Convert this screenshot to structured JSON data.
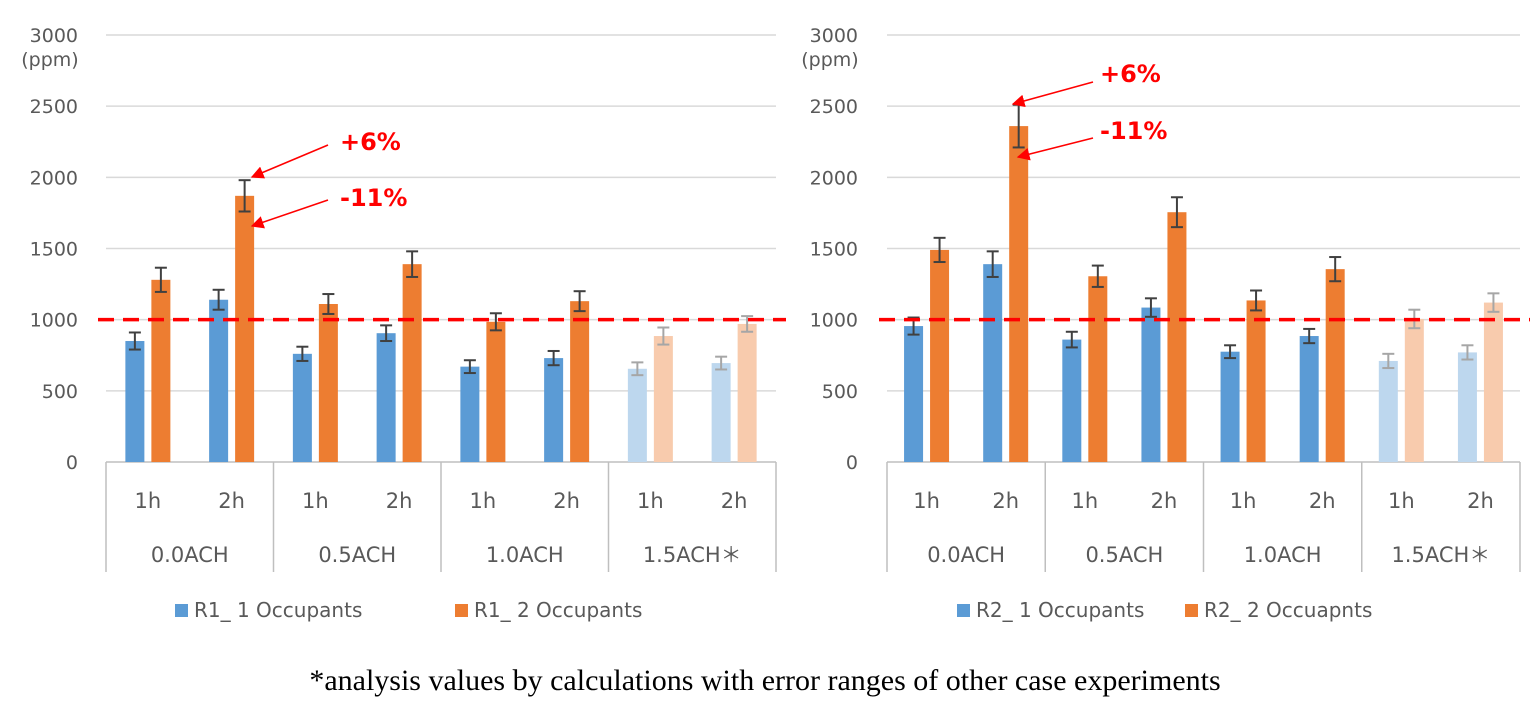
{
  "footnote": "*analysis values by calculations with error ranges of other case experiments",
  "colors": {
    "grid": "#d9d9d9",
    "axis_line": "#bfbfbf",
    "blue": "#5b9bd5",
    "orange": "#ed7d31",
    "blue_light": "#bdd7ee",
    "orange_light": "#f8cbad",
    "error_bar": "#404040",
    "error_bar_light": "#a6a6a6",
    "threshold": "#ff0000",
    "annotation": "#ff0000"
  },
  "chart_data": [
    {
      "type": "bar",
      "unit": "(ppm)",
      "ylim": [
        0,
        3000
      ],
      "yticks": [
        "0",
        "500",
        "1000",
        "1500",
        "2000",
        "2500",
        "3000"
      ],
      "grid": true,
      "legend_position": "bottom",
      "threshold": 1000,
      "categories": [
        "1h",
        "2h",
        "1h",
        "2h",
        "1h",
        "2h",
        "1h",
        "2h"
      ],
      "groups": [
        "0.0ACH",
        "0.5ACH",
        "1.0ACH",
        "1.5ACH＊"
      ],
      "estimated_group_index": 3,
      "series": [
        {
          "name": "R1_ 1 Occupants",
          "values": [
            850,
            1140,
            760,
            905,
            670,
            730,
            655,
            695
          ],
          "errors": [
            60,
            70,
            50,
            55,
            45,
            50,
            45,
            45
          ]
        },
        {
          "name": "R1_ 2 Occupants",
          "values": [
            1280,
            1870,
            1110,
            1390,
            985,
            1130,
            885,
            970
          ],
          "errors": [
            85,
            110,
            70,
            90,
            60,
            70,
            60,
            55
          ]
        }
      ],
      "annotations": [
        {
          "text": "+6%",
          "target_value": 1980,
          "target_index": 1
        },
        {
          "text": "-11%",
          "target_value": 1660,
          "target_index": 1
        }
      ]
    },
    {
      "type": "bar",
      "unit": "(ppm)",
      "ylim": [
        0,
        3000
      ],
      "yticks": [
        "0",
        "500",
        "1000",
        "1500",
        "2000",
        "2500",
        "3000"
      ],
      "grid": true,
      "legend_position": "bottom",
      "threshold": 1000,
      "categories": [
        "1h",
        "2h",
        "1h",
        "2h",
        "1h",
        "2h",
        "1h",
        "2h"
      ],
      "groups": [
        "0.0ACH",
        "0.5ACH",
        "1.0ACH",
        "1.5ACH＊"
      ],
      "estimated_group_index": 3,
      "series": [
        {
          "name": "R2_ 1 Occupants",
          "values": [
            955,
            1390,
            860,
            1085,
            775,
            885,
            710,
            770
          ],
          "errors": [
            60,
            90,
            55,
            65,
            45,
            50,
            50,
            50
          ]
        },
        {
          "name": "R2_ 2 Occuapnts",
          "values": [
            1490,
            2360,
            1305,
            1755,
            1135,
            1355,
            1005,
            1120
          ],
          "errors": [
            85,
            150,
            75,
            105,
            70,
            85,
            65,
            65
          ]
        }
      ],
      "annotations": [
        {
          "text": "+6%",
          "target_value": 2510,
          "target_index": 1
        },
        {
          "text": "-11%",
          "target_value": 2140,
          "target_index": 1
        }
      ]
    }
  ]
}
